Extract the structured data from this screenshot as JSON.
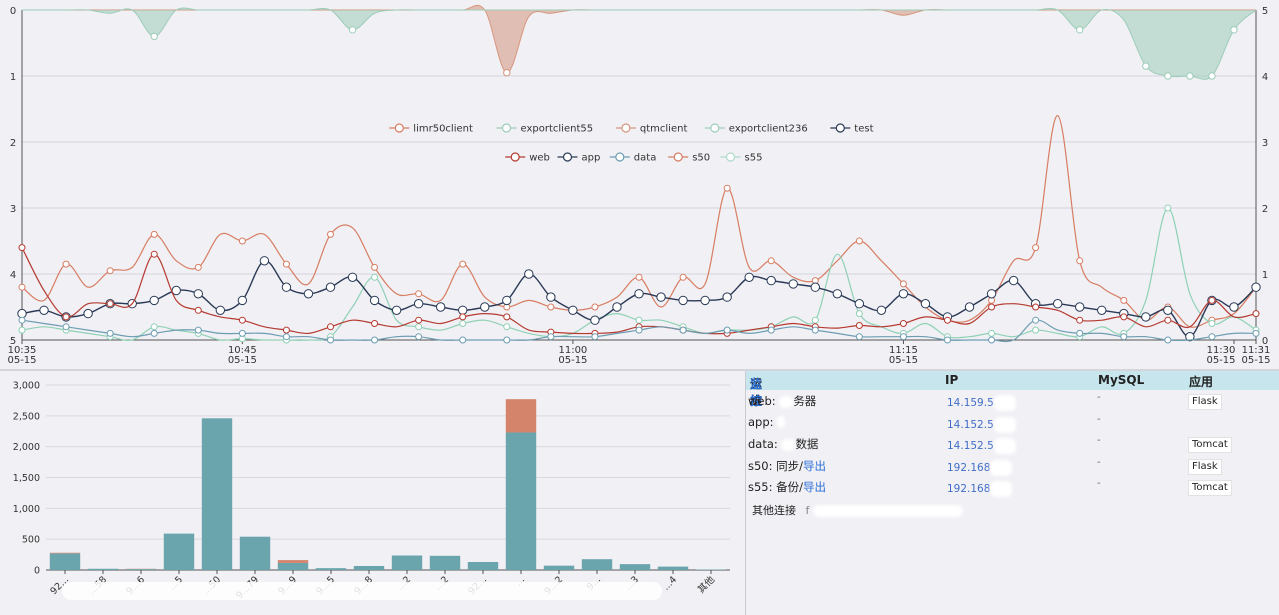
{
  "chart_data": [
    {
      "type": "line",
      "title": "",
      "x_tick_labels": [
        {
          "time": "10:35",
          "date": "05-15",
          "t": 0
        },
        {
          "time": "10:45",
          "date": "05-15",
          "t": 10
        },
        {
          "time": "11:00",
          "date": "05-15",
          "t": 25
        },
        {
          "time": "11:15",
          "date": "05-15",
          "t": 40
        },
        {
          "time": "11:30",
          "date": "05-15",
          "t": 55
        },
        {
          "time": "11:31",
          "date": "05-15",
          "t": 56
        }
      ],
      "y_left_ticks": [
        "0",
        "1",
        "2",
        "3",
        "4",
        "5"
      ],
      "y_right_ticks": [
        "5",
        "4",
        "3",
        "2",
        "1",
        "0"
      ],
      "y_left_inverted": true,
      "ylim": [
        0,
        5
      ],
      "grid": true,
      "legend_position": "top-center",
      "legend_rows": [
        [
          "limr50client",
          "exportclient55",
          "qtmclient",
          "exportclient236",
          "test"
        ],
        [
          "web",
          "app",
          "data",
          "s50",
          "s55"
        ]
      ],
      "upper_series": [
        {
          "name": "limr50client",
          "color": "#d4967e",
          "area": true,
          "values": [
            0,
            0,
            0,
            0,
            0,
            0,
            0,
            0,
            0,
            0,
            0,
            0,
            0,
            0,
            0,
            0,
            0,
            0,
            0,
            0,
            0,
            0,
            0.95,
            0.1,
            0.05,
            0,
            0,
            0,
            0,
            0,
            0,
            0,
            0,
            0,
            0,
            0,
            0,
            0,
            0,
            0,
            0.08,
            0,
            0,
            0,
            0,
            0,
            0,
            0,
            0,
            0,
            0,
            0,
            0,
            0,
            0,
            0,
            0
          ]
        },
        {
          "name": "exportclient236",
          "color": "#9ccdb8",
          "area": true,
          "values": [
            0,
            0,
            0,
            0,
            0.05,
            0,
            0.4,
            0,
            0,
            0,
            0,
            0,
            0,
            0,
            0,
            0.3,
            0.05,
            0,
            0,
            0,
            0,
            0,
            0,
            0,
            0,
            0,
            0,
            0,
            0,
            0,
            0,
            0,
            0,
            0,
            0,
            0,
            0,
            0,
            0,
            0,
            0,
            0,
            0,
            0,
            0,
            0,
            0,
            0,
            0.3,
            0,
            0.15,
            0.85,
            1.0,
            1.0,
            1.0,
            0.3,
            0
          ]
        }
      ],
      "lower_series": [
        {
          "name": "limr50client",
          "color": "#d77d62",
          "values": [
            0.8,
            0.6,
            1.15,
            0.8,
            1.05,
            1.1,
            1.6,
            1.2,
            1.1,
            1.6,
            1.5,
            1.6,
            1.15,
            0.85,
            1.6,
            1.7,
            1.1,
            0.7,
            0.7,
            0.6,
            1.15,
            0.65,
            0.5,
            0.6,
            0.5,
            0.45,
            0.5,
            0.65,
            0.95,
            0.5,
            0.95,
            0.85,
            2.3,
            1.1,
            1.2,
            0.95,
            0.9,
            1.2,
            1.5,
            1.2,
            0.85,
            0.5,
            0.3,
            0.3,
            0.6,
            1.2,
            1.4,
            3.4,
            1.2,
            0.8,
            0.6,
            0.3,
            0.5,
            0.2,
            0.3,
            0.4,
            0.8
          ]
        },
        {
          "name": "exportclient55",
          "color": "#8fd1b5",
          "values": [
            0.15,
            0.2,
            0.15,
            0.1,
            0.05,
            0,
            0.2,
            0.15,
            0.1,
            0,
            0.02,
            0,
            0,
            0,
            0.05,
            0.5,
            0.95,
            0.3,
            0.2,
            0.15,
            0.25,
            0.3,
            0.2,
            0.1,
            0.05,
            0.1,
            0.3,
            0.4,
            0.3,
            0.3,
            0.2,
            0.1,
            0.15,
            0.15,
            0.2,
            0.35,
            0.3,
            1.3,
            0.4,
            0.2,
            0.1,
            0.25,
            0.05,
            0.05,
            0.1,
            0.05,
            0.15,
            0.1,
            0.05,
            0.2,
            0.1,
            0.6,
            2.0,
            0.7,
            0.25,
            0.35,
            0.15
          ]
        },
        {
          "name": "test",
          "color": "#2a3a56",
          "values": [
            0.4,
            0.45,
            0.35,
            0.4,
            0.55,
            0.55,
            0.6,
            0.75,
            0.7,
            0.45,
            0.6,
            1.2,
            0.8,
            0.7,
            0.8,
            0.95,
            0.6,
            0.45,
            0.55,
            0.5,
            0.45,
            0.5,
            0.6,
            1.0,
            0.65,
            0.45,
            0.3,
            0.5,
            0.7,
            0.65,
            0.6,
            0.6,
            0.65,
            0.95,
            0.9,
            0.85,
            0.8,
            0.7,
            0.55,
            0.45,
            0.7,
            0.55,
            0.35,
            0.5,
            0.7,
            0.9,
            0.55,
            0.55,
            0.5,
            0.45,
            0.4,
            0.35,
            0.45,
            0.05,
            0.6,
            0.5,
            0.8
          ]
        },
        {
          "name": "web",
          "color": "#b53a30",
          "values": [
            1.4,
            0.75,
            0.35,
            0.55,
            0.55,
            0.55,
            1.3,
            0.6,
            0.45,
            0.35,
            0.3,
            0.2,
            0.15,
            0.1,
            0.2,
            0.3,
            0.25,
            0.2,
            0.3,
            0.25,
            0.35,
            0.4,
            0.35,
            0.15,
            0.12,
            0.1,
            0.1,
            0.12,
            0.2,
            0.2,
            0.15,
            0.1,
            0.1,
            0.15,
            0.2,
            0.25,
            0.2,
            0.18,
            0.22,
            0.2,
            0.25,
            0.35,
            0.3,
            0.25,
            0.5,
            0.55,
            0.5,
            0.45,
            0.3,
            0.3,
            0.35,
            0.2,
            0.3,
            0.2,
            0.6,
            0.35,
            0.4
          ]
        },
        {
          "name": "data",
          "color": "#6d9db2",
          "values": [
            0.3,
            0.25,
            0.2,
            0.15,
            0.1,
            0.05,
            0.1,
            0.15,
            0.15,
            0.1,
            0.1,
            0.1,
            0.05,
            0.05,
            0,
            0,
            0,
            0.05,
            0.05,
            0,
            0,
            0,
            0,
            0,
            0.05,
            0.05,
            0.05,
            0.1,
            0.15,
            0.2,
            0.15,
            0.1,
            0.15,
            0.1,
            0.15,
            0.2,
            0.15,
            0.1,
            0.05,
            0.05,
            0.05,
            0.05,
            0,
            0,
            0,
            0,
            0.3,
            0.15,
            0.1,
            0.1,
            0.05,
            0.05,
            0,
            0,
            0.05,
            0.1,
            0.1
          ]
        }
      ]
    },
    {
      "type": "bar",
      "stacked": true,
      "ylim": [
        0,
        3000
      ],
      "y_ticks": [
        "0",
        "500",
        "1,000",
        "1,500",
        "2,000",
        "2,500",
        "3,000"
      ],
      "grid": true,
      "categories": [
        "92...",
        "...58",
        "9...6",
        "...5",
        "...50",
        "9...79",
        "9...9",
        "9...5",
        "9...8",
        "...2",
        "...2",
        "92...",
        "...",
        "9...2",
        "9...",
        "...3",
        "...4",
        "其他"
      ],
      "series": [
        {
          "color": "#6aa4ad",
          "values": [
            270,
            20,
            15,
            590,
            2460,
            540,
            115,
            30,
            65,
            235,
            230,
            130,
            2230,
            70,
            175,
            95,
            55,
            8
          ]
        },
        {
          "color": "#d4846a",
          "values": [
            10,
            0,
            5,
            0,
            0,
            0,
            45,
            0,
            0,
            0,
            0,
            0,
            540,
            0,
            0,
            0,
            0,
            0
          ]
        }
      ]
    }
  ],
  "table": {
    "headers": {
      "col1_part1": "运维",
      "col1_part2": "监控",
      "ip": "IP",
      "mysql": "MySQL",
      "app": "应用"
    },
    "rows": [
      {
        "name_a": "web: ",
        "name_b": "",
        "name_c": "务器",
        "ip": "14.159.5",
        "mysql": "-",
        "app": "Flask"
      },
      {
        "name_a": "app: ",
        "name_b": "",
        "name_c": "",
        "ip": "14.152.5",
        "mysql": "-",
        "app": ""
      },
      {
        "name_a": "data: ",
        "name_b": "",
        "name_c": "数据",
        "ip": "14.152.5",
        "mysql": "-",
        "app": "Tomcat"
      },
      {
        "name_a": "s50: 同步/",
        "name_b": "导出",
        "name_c": "",
        "ip": "192.168",
        "mysql": "-",
        "app": "Flask"
      },
      {
        "name_a": "s55: 备份/",
        "name_b": "导出",
        "name_c": "",
        "ip": "192.168",
        "mysql": "-",
        "app": "Tomcat"
      }
    ],
    "other_label": "其他连接",
    "other_value": "f"
  }
}
